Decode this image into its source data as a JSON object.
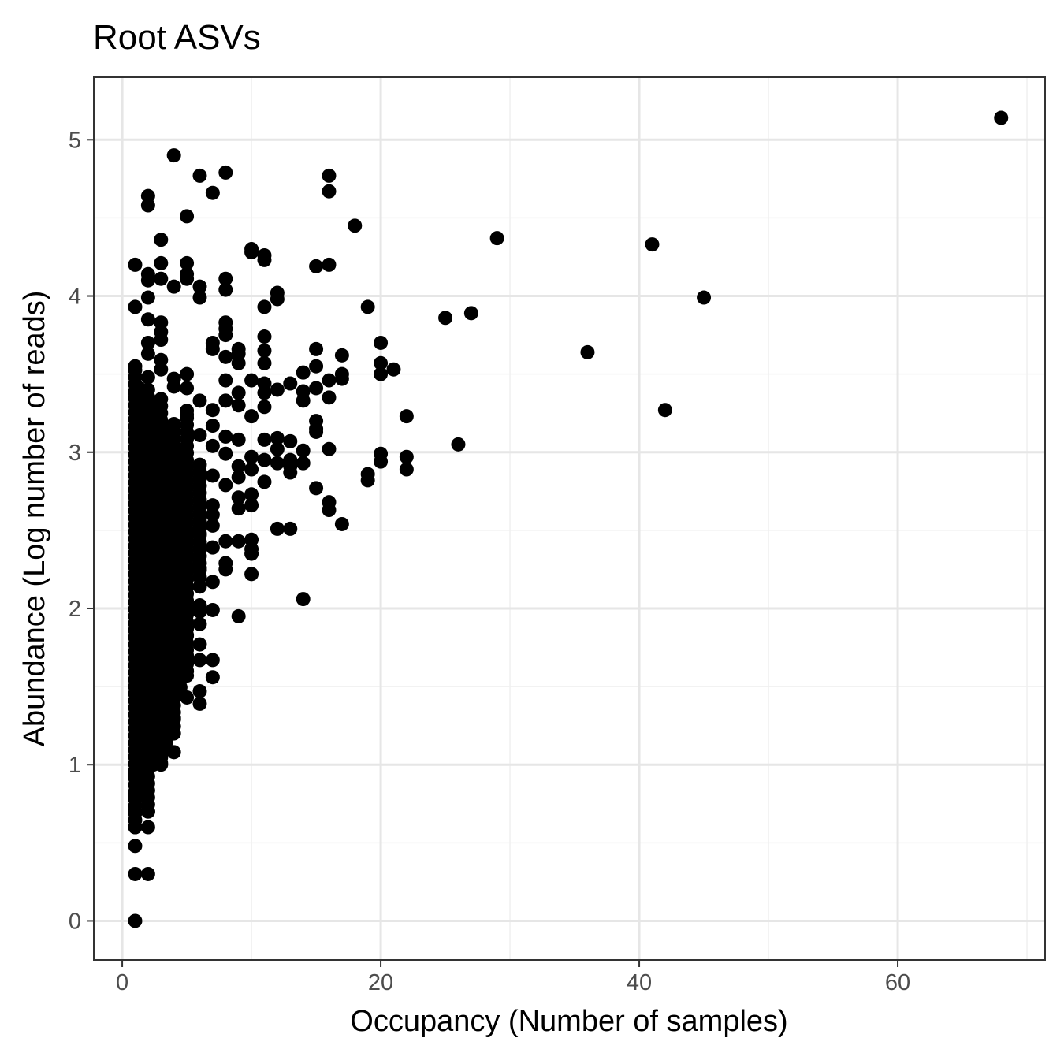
{
  "chart_data": {
    "type": "scatter",
    "title": "Root ASVs",
    "xlabel": "Occupancy (Number of samples)",
    "ylabel": "Abundance (Log number of reads)",
    "xlim": [
      -2.2,
      71.4
    ],
    "ylim": [
      -0.25,
      5.4
    ],
    "xticks": [
      0,
      20,
      40,
      60
    ],
    "yticks": [
      0,
      1,
      2,
      3,
      4,
      5
    ],
    "xtick_labels": [
      "0",
      "20",
      "40",
      "60"
    ],
    "ytick_labels": [
      "0",
      "1",
      "2",
      "3",
      "4",
      "5"
    ],
    "grid": true,
    "point_color": "#000000",
    "points": [
      [
        68,
        5.14
      ],
      [
        4,
        4.9
      ],
      [
        8,
        4.79
      ],
      [
        6,
        4.77
      ],
      [
        16,
        4.77
      ],
      [
        7,
        4.66
      ],
      [
        16,
        4.67
      ],
      [
        2,
        4.64
      ],
      [
        2,
        4.58
      ],
      [
        5,
        4.51
      ],
      [
        18,
        4.45
      ],
      [
        3,
        4.36
      ],
      [
        29,
        4.37
      ],
      [
        41,
        4.33
      ],
      [
        10,
        4.3
      ],
      [
        10,
        4.28
      ],
      [
        11,
        4.26
      ],
      [
        11,
        4.23
      ],
      [
        1,
        4.2
      ],
      [
        3,
        4.21
      ],
      [
        5,
        4.21
      ],
      [
        15,
        4.19
      ],
      [
        16,
        4.2
      ],
      [
        2,
        4.14
      ],
      [
        5,
        4.14
      ],
      [
        2,
        4.1
      ],
      [
        3,
        4.11
      ],
      [
        5,
        4.11
      ],
      [
        8,
        4.11
      ],
      [
        4,
        4.06
      ],
      [
        6,
        4.06
      ],
      [
        8,
        4.04
      ],
      [
        12,
        4.02
      ],
      [
        12,
        3.98
      ],
      [
        45,
        3.99
      ],
      [
        6,
        3.99
      ],
      [
        2,
        3.99
      ],
      [
        1,
        3.93
      ],
      [
        11,
        3.93
      ],
      [
        19,
        3.93
      ],
      [
        27,
        3.89
      ],
      [
        25,
        3.86
      ],
      [
        2,
        3.85
      ],
      [
        3,
        3.83
      ],
      [
        8,
        3.83
      ],
      [
        8,
        3.79
      ],
      [
        8,
        3.75
      ],
      [
        3,
        3.77
      ],
      [
        11,
        3.74
      ],
      [
        3,
        3.72
      ],
      [
        2,
        3.7
      ],
      [
        7,
        3.7
      ],
      [
        20,
        3.7
      ],
      [
        7,
        3.66
      ],
      [
        9,
        3.66
      ],
      [
        11,
        3.65
      ],
      [
        15,
        3.66
      ],
      [
        36,
        3.64
      ],
      [
        2,
        3.63
      ],
      [
        9,
        3.63
      ],
      [
        8,
        3.61
      ],
      [
        17,
        3.62
      ],
      [
        3,
        3.59
      ],
      [
        9,
        3.57
      ],
      [
        11,
        3.57
      ],
      [
        20,
        3.57
      ],
      [
        1,
        3.55
      ],
      [
        15,
        3.55
      ],
      [
        3,
        3.53
      ],
      [
        14,
        3.51
      ],
      [
        21,
        3.53
      ],
      [
        5,
        3.5
      ],
      [
        17,
        3.5
      ],
      [
        20,
        3.5
      ],
      [
        2,
        3.48
      ],
      [
        4,
        3.47
      ],
      [
        8,
        3.46
      ],
      [
        10,
        3.46
      ],
      [
        16,
        3.46
      ],
      [
        17,
        3.47
      ],
      [
        11,
        3.44
      ],
      [
        13,
        3.44
      ],
      [
        4,
        3.42
      ],
      [
        5,
        3.41
      ],
      [
        12,
        3.4
      ],
      [
        14,
        3.39
      ],
      [
        15,
        3.41
      ],
      [
        1,
        3.38
      ],
      [
        9,
        3.38
      ],
      [
        11,
        3.38
      ],
      [
        16,
        3.35
      ],
      [
        3,
        3.34
      ],
      [
        6,
        3.33
      ],
      [
        8,
        3.33
      ],
      [
        14,
        3.33
      ],
      [
        2,
        3.3
      ],
      [
        9,
        3.3
      ],
      [
        11,
        3.29
      ],
      [
        42,
        3.27
      ],
      [
        7,
        3.27
      ],
      [
        5,
        3.24
      ],
      [
        10,
        3.23
      ],
      [
        22,
        3.23
      ],
      [
        15,
        3.2
      ],
      [
        4,
        3.18
      ],
      [
        7,
        3.17
      ],
      [
        15,
        3.15
      ],
      [
        15,
        3.13
      ],
      [
        3,
        3.12
      ],
      [
        6,
        3.11
      ],
      [
        8,
        3.1
      ],
      [
        12,
        3.09
      ],
      [
        9,
        3.08
      ],
      [
        11,
        3.08
      ],
      [
        13,
        3.07
      ],
      [
        26,
        3.05
      ],
      [
        7,
        3.04
      ],
      [
        16,
        3.02
      ],
      [
        12,
        3.02
      ],
      [
        14,
        3.01
      ],
      [
        8,
        2.99
      ],
      [
        20,
        2.99
      ],
      [
        10,
        2.97
      ],
      [
        22,
        2.97
      ],
      [
        11,
        2.95
      ],
      [
        13,
        2.95
      ],
      [
        20,
        2.94
      ],
      [
        12,
        2.93
      ],
      [
        14,
        2.93
      ],
      [
        9,
        2.91
      ],
      [
        13,
        2.91
      ],
      [
        22,
        2.89
      ],
      [
        10,
        2.89
      ],
      [
        13,
        2.87
      ],
      [
        19,
        2.86
      ],
      [
        7,
        2.85
      ],
      [
        9,
        2.84
      ],
      [
        19,
        2.82
      ],
      [
        11,
        2.81
      ],
      [
        8,
        2.79
      ],
      [
        15,
        2.77
      ],
      [
        10,
        2.73
      ],
      [
        9,
        2.71
      ],
      [
        16,
        2.68
      ],
      [
        7,
        2.66
      ],
      [
        10,
        2.66
      ],
      [
        9,
        2.64
      ],
      [
        16,
        2.63
      ],
      [
        7,
        2.6
      ],
      [
        17,
        2.54
      ],
      [
        7,
        2.53
      ],
      [
        12,
        2.51
      ],
      [
        13,
        2.51
      ],
      [
        6,
        2.48
      ],
      [
        8,
        2.43
      ],
      [
        9,
        2.43
      ],
      [
        10,
        2.44
      ],
      [
        7,
        2.39
      ],
      [
        10,
        2.38
      ],
      [
        10,
        2.35
      ],
      [
        8,
        2.29
      ],
      [
        8,
        2.25
      ],
      [
        6,
        2.26
      ],
      [
        10,
        2.22
      ],
      [
        7,
        2.17
      ],
      [
        6,
        2.14
      ],
      [
        14,
        2.06
      ],
      [
        6,
        2.02
      ],
      [
        7,
        1.99
      ],
      [
        6,
        1.98
      ],
      [
        9,
        1.95
      ],
      [
        6,
        1.9
      ],
      [
        5,
        1.83
      ],
      [
        6,
        1.77
      ],
      [
        5,
        1.7
      ],
      [
        6,
        1.67
      ],
      [
        7,
        1.67
      ],
      [
        5,
        1.6
      ],
      [
        5,
        1.57
      ],
      [
        7,
        1.56
      ],
      [
        6,
        1.47
      ],
      [
        5,
        1.43
      ],
      [
        6,
        1.39
      ],
      [
        4,
        1.42
      ],
      [
        4,
        1.3
      ],
      [
        4,
        1.08
      ],
      [
        3,
        1.01
      ],
      [
        1,
        0.93
      ],
      [
        1,
        0.8
      ],
      [
        1,
        0.7
      ],
      [
        2,
        0.7
      ],
      [
        1,
        0.6
      ],
      [
        2,
        0.6
      ],
      [
        1,
        0.48
      ],
      [
        1,
        0.3
      ],
      [
        2,
        0.3
      ],
      [
        1,
        0.0
      ]
    ],
    "dense_region": {
      "note": "many overlapping points",
      "columns": [
        {
          "x": 1,
          "range": [
            0.6,
            3.55
          ]
        },
        {
          "x": 1.3,
          "range": [
            0.8,
            3.45
          ]
        },
        {
          "x": 1.7,
          "range": [
            0.9,
            3.4
          ]
        },
        {
          "x": 2,
          "range": [
            0.7,
            3.4
          ]
        },
        {
          "x": 2.4,
          "range": [
            1.0,
            3.3
          ]
        },
        {
          "x": 2.8,
          "range": [
            1.05,
            3.25
          ]
        },
        {
          "x": 3,
          "range": [
            1.0,
            3.3
          ]
        },
        {
          "x": 3.4,
          "range": [
            1.1,
            3.1
          ]
        },
        {
          "x": 4,
          "range": [
            1.2,
            3.2
          ]
        },
        {
          "x": 4.5,
          "range": [
            1.45,
            3.0
          ]
        },
        {
          "x": 5,
          "range": [
            1.6,
            3.3
          ]
        },
        {
          "x": 6,
          "range": [
            2.2,
            2.95
          ]
        }
      ]
    }
  }
}
